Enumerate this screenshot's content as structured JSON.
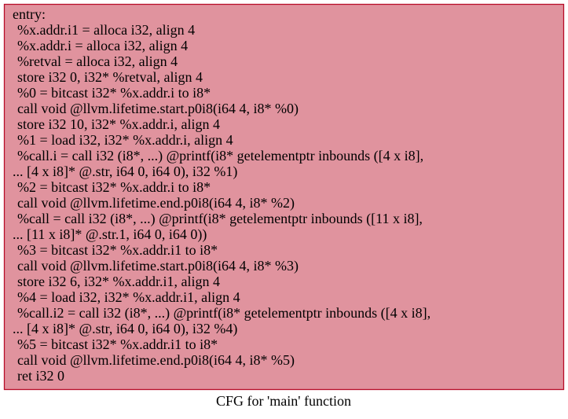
{
  "nodes": [
    {
      "lines": [
        "entry:",
        "%x.addr.i1 = alloca i32, align 4",
        "%x.addr.i = alloca i32, align 4",
        "%retval = alloca i32, align 4",
        "store i32 0, i32* %retval, align 4",
        "%0 = bitcast i32* %x.addr.i to i8*",
        "call void @llvm.lifetime.start.p0i8(i64 4, i8* %0)",
        "store i32 10, i32* %x.addr.i, align 4",
        "%1 = load i32, i32* %x.addr.i, align 4",
        "%call.i = call i32 (i8*, ...) @printf(i8* getelementptr inbounds ([4 x i8],",
        "... [4 x i8]* @.str, i64 0, i64 0), i32 %1)",
        "%2 = bitcast i32* %x.addr.i to i8*",
        "call void @llvm.lifetime.end.p0i8(i64 4, i8* %2)",
        "%call = call i32 (i8*, ...) @printf(i8* getelementptr inbounds ([11 x i8],",
        "... [11 x i8]* @.str.1, i64 0, i64 0))",
        "%3 = bitcast i32* %x.addr.i1 to i8*",
        "call void @llvm.lifetime.start.p0i8(i64 4, i8* %3)",
        "store i32 6, i32* %x.addr.i1, align 4",
        "%4 = load i32, i32* %x.addr.i1, align 4",
        "%call.i2 = call i32 (i8*, ...) @printf(i8* getelementptr inbounds ([4 x i8],",
        "... [4 x i8]* @.str, i64 0, i64 0), i32 %4)",
        "%5 = bitcast i32* %x.addr.i1 to i8*",
        "call void @llvm.lifetime.end.p0i8(i64 4, i8* %5)",
        "ret i32 0"
      ]
    }
  ],
  "caption": "CFG for 'main' function"
}
